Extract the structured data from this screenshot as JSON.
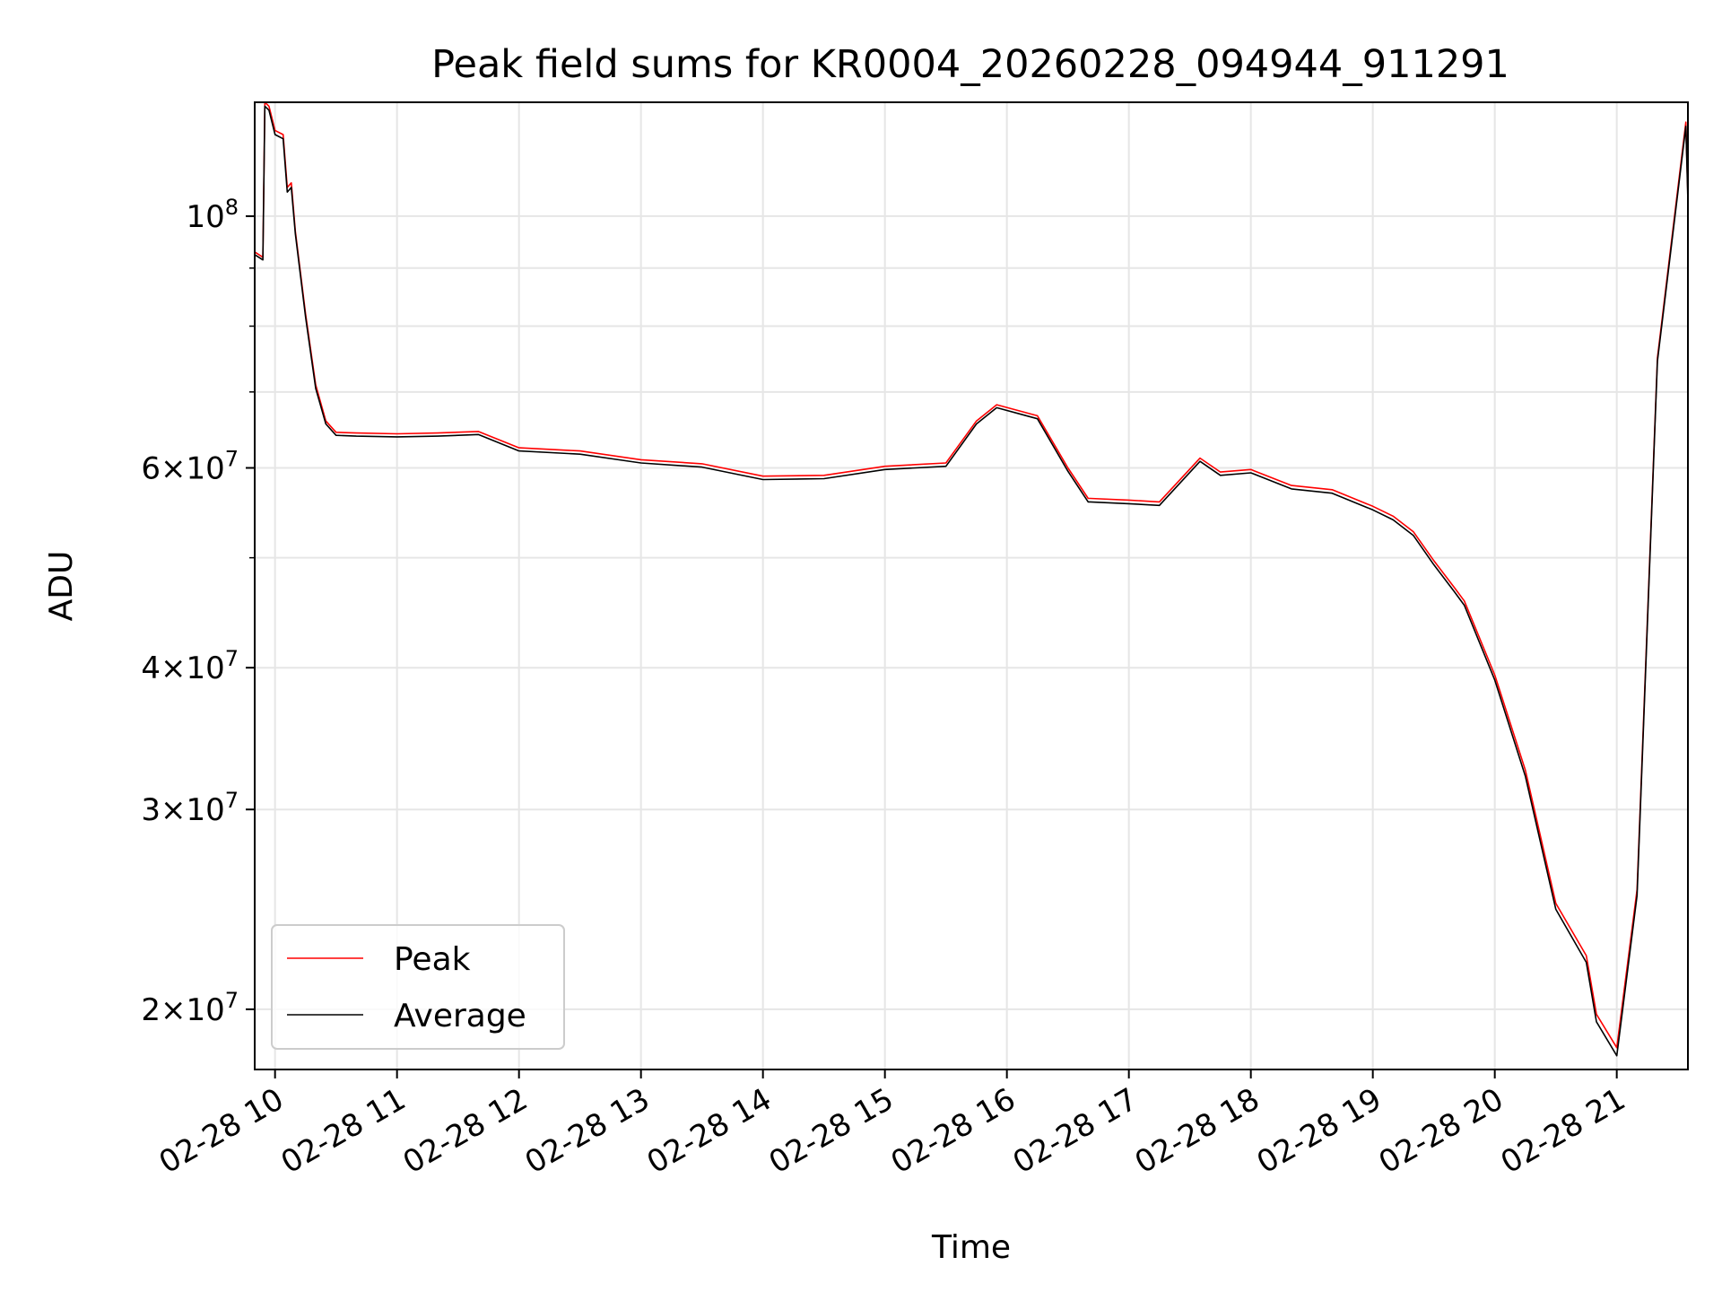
{
  "chart_data": {
    "type": "line",
    "title": "Peak field sums for KR0004_20260228_094944_911291",
    "xlabel": "Time",
    "ylabel": "ADU",
    "y_scale": "log",
    "grid": true,
    "legend_position": "lower-left",
    "xlim": [
      "02-28 09:50",
      "02-28 21:35"
    ],
    "ylim": [
      17700000,
      126000000
    ],
    "x_tick_labels": [
      "02-28 10",
      "02-28 11",
      "02-28 12",
      "02-28 13",
      "02-28 14",
      "02-28 15",
      "02-28 16",
      "02-28 17",
      "02-28 18",
      "02-28 19",
      "02-28 20",
      "02-28 21"
    ],
    "x_tick_values": [
      "02-28 10:00",
      "02-28 11:00",
      "02-28 12:00",
      "02-28 13:00",
      "02-28 14:00",
      "02-28 15:00",
      "02-28 16:00",
      "02-28 17:00",
      "02-28 18:00",
      "02-28 19:00",
      "02-28 20:00",
      "02-28 21:00"
    ],
    "y_major_ticks": [
      {
        "value": 20000000,
        "mantissa": "2",
        "exp": "7"
      },
      {
        "value": 30000000,
        "mantissa": "3",
        "exp": "7"
      },
      {
        "value": 40000000,
        "mantissa": "4",
        "exp": "7"
      },
      {
        "value": 60000000,
        "mantissa": "6",
        "exp": "7"
      },
      {
        "value": 100000000,
        "mantissa": "",
        "exp": "8"
      }
    ],
    "y_minor_ticks": [
      50000000,
      70000000,
      80000000,
      90000000
    ],
    "series": [
      {
        "name": "Peak",
        "color": "#ff0000",
        "x": [
          "02-28 09:50",
          "02-28 09:54",
          "02-28 09:55",
          "02-28 09:57",
          "02-28 10:00",
          "02-28 10:04",
          "02-28 10:06",
          "02-28 10:08",
          "02-28 10:10",
          "02-28 10:15",
          "02-28 10:20",
          "02-28 10:25",
          "02-28 10:30",
          "02-28 10:40",
          "02-28 11:00",
          "02-28 11:20",
          "02-28 11:40",
          "02-28 12:00",
          "02-28 12:30",
          "02-28 13:00",
          "02-28 13:30",
          "02-28 14:00",
          "02-28 14:30",
          "02-28 15:00",
          "02-28 15:30",
          "02-28 15:45",
          "02-28 15:55",
          "02-28 16:15",
          "02-28 16:30",
          "02-28 16:40",
          "02-28 16:41",
          "02-28 17:00",
          "02-28 17:15",
          "02-28 17:35",
          "02-28 17:45",
          "02-28 18:00",
          "02-28 18:20",
          "02-28 18:40",
          "02-28 19:00",
          "02-28 19:10",
          "02-28 19:20",
          "02-28 19:30",
          "02-28 19:40",
          "02-28 19:45",
          "02-28 20:00",
          "02-28 20:15",
          "02-28 20:30",
          "02-28 20:45",
          "02-28 20:50",
          "02-28 21:00",
          "02-28 21:10",
          "02-28 21:20",
          "02-28 21:34",
          "02-28 21:35"
        ],
        "y": [
          93000000,
          92000000,
          126000000,
          125000000,
          119000000,
          118000000,
          106000000,
          107000000,
          97000000,
          82000000,
          71000000,
          66000000,
          64500000,
          64400000,
          64300000,
          64400000,
          64600000,
          62500000,
          62100000,
          61000000,
          60500000,
          59000000,
          59100000,
          60200000,
          60600000,
          66000000,
          68200000,
          66700000,
          60000000,
          56400000,
          56400000,
          56200000,
          56000000,
          61200000,
          59500000,
          59800000,
          57900000,
          57400000,
          55500000,
          54400000,
          52700000,
          49700000,
          47100000,
          45800000,
          39400000,
          32500000,
          24800000,
          22300000,
          19800000,
          18500000,
          25500000,
          75000000,
          121000000,
          104000000
        ]
      },
      {
        "name": "Average",
        "color": "#000000",
        "x": [
          "02-28 09:50",
          "02-28 09:54",
          "02-28 09:55",
          "02-28 09:57",
          "02-28 10:00",
          "02-28 10:04",
          "02-28 10:06",
          "02-28 10:08",
          "02-28 10:10",
          "02-28 10:15",
          "02-28 10:20",
          "02-28 10:25",
          "02-28 10:30",
          "02-28 10:40",
          "02-28 11:00",
          "02-28 11:20",
          "02-28 11:40",
          "02-28 12:00",
          "02-28 12:30",
          "02-28 13:00",
          "02-28 13:30",
          "02-28 14:00",
          "02-28 14:30",
          "02-28 15:00",
          "02-28 15:30",
          "02-28 15:45",
          "02-28 15:55",
          "02-28 16:15",
          "02-28 16:30",
          "02-28 16:40",
          "02-28 16:41",
          "02-28 17:00",
          "02-28 17:15",
          "02-28 17:35",
          "02-28 17:45",
          "02-28 18:00",
          "02-28 18:20",
          "02-28 18:40",
          "02-28 19:00",
          "02-28 19:10",
          "02-28 19:20",
          "02-28 19:30",
          "02-28 19:40",
          "02-28 19:45",
          "02-28 20:00",
          "02-28 20:15",
          "02-28 20:30",
          "02-28 20:45",
          "02-28 20:50",
          "02-28 21:00",
          "02-28 21:10",
          "02-28 21:20",
          "02-28 21:34",
          "02-28 21:35"
        ],
        "y": [
          92500000,
          91500000,
          125000000,
          124000000,
          118000000,
          117000000,
          105000000,
          106000000,
          96500000,
          81500000,
          70500000,
          65600000,
          64100000,
          64000000,
          63900000,
          64000000,
          64200000,
          62100000,
          61700000,
          60600000,
          60100000,
          58600000,
          58700000,
          59800000,
          60200000,
          65600000,
          67800000,
          66300000,
          59600000,
          56000000,
          56000000,
          55800000,
          55600000,
          60800000,
          59100000,
          59400000,
          57500000,
          57000000,
          55100000,
          54000000,
          52300000,
          49300000,
          46700000,
          45400000,
          39000000,
          32100000,
          24500000,
          22000000,
          19500000,
          18200000,
          25200000,
          74500000,
          120000000,
          103000000
        ]
      }
    ]
  }
}
